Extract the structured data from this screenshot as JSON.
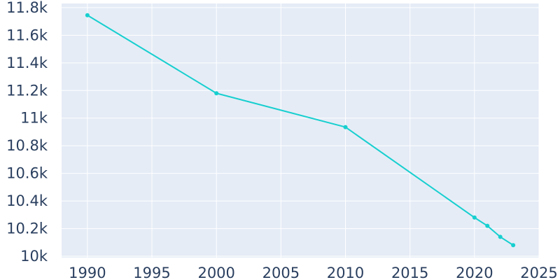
{
  "chart_data": {
    "type": "line",
    "title": "",
    "xlabel": "",
    "ylabel": "",
    "xlim": [
      1988,
      2025
    ],
    "ylim": [
      9990,
      11830
    ],
    "grid": true,
    "legend": "none",
    "x_ticks": [
      1990,
      1995,
      2000,
      2005,
      2010,
      2015,
      2020,
      2025
    ],
    "x_tick_labels": [
      "1990",
      "1995",
      "2000",
      "2005",
      "2010",
      "2015",
      "2020",
      "2025"
    ],
    "y_ticks": [
      10000,
      10200,
      10400,
      10600,
      10800,
      11000,
      11200,
      11400,
      11600,
      11800
    ],
    "y_tick_labels": [
      "10k",
      "10.2k",
      "10.4k",
      "10.6k",
      "10.8k",
      "11k",
      "11.2k",
      "11.4k",
      "11.6k",
      "11.8k"
    ],
    "series": [
      {
        "x": [
          1990,
          2000,
          2010,
          2020,
          2021,
          2022,
          2023
        ],
        "y": [
          11745,
          11180,
          10935,
          10280,
          10220,
          10140,
          10080
        ]
      }
    ],
    "colors": {
      "line": "#17cfcf",
      "plot_background": "#e5ecf6",
      "grid": "#ffffff",
      "text": "#2a3f5f"
    }
  }
}
